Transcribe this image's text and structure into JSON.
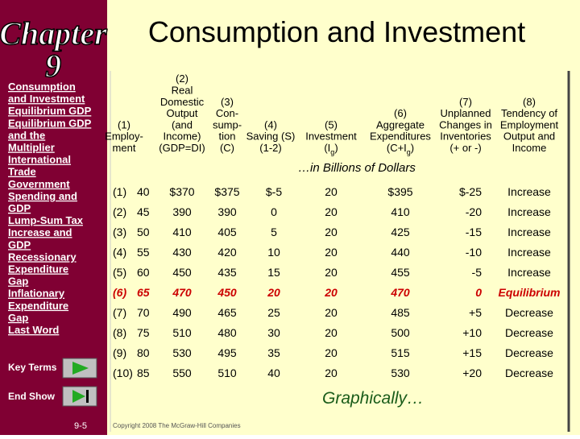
{
  "sidebar": {
    "chapter_word": "Chapter",
    "chapter_number": "9",
    "nav": [
      "Consumption",
      "and Investment",
      "Equilibrium GDP",
      "Equilibrium GDP",
      "and the",
      "Multiplier",
      "International",
      "Trade",
      "Government",
      "Spending and",
      "GDP",
      "Lump-Sum Tax",
      "Increase and",
      "GDP",
      "Recessionary",
      "Expenditure",
      "Gap",
      "Inflationary",
      "Expenditure",
      "Gap",
      "Last Word"
    ],
    "key_terms": "Key Terms",
    "end_show": "End Show",
    "page": "9-5"
  },
  "title": "Consumption and Investment",
  "table": {
    "headers": [
      [
        "(1)",
        "Employ-",
        "ment"
      ],
      [
        "(2)",
        "Real",
        "Domestic",
        "Output",
        "(and",
        "Income)",
        "(GDP=DI)"
      ],
      [
        "(3)",
        "Con-",
        "sump-",
        "tion",
        "(C)"
      ],
      [
        "(4)",
        "Saving (S)",
        "(1-2)"
      ],
      [
        "(5)",
        "Investment",
        {
          "text": "(I",
          "sub": "g",
          "tail": ")"
        }
      ],
      [
        "(6)",
        "Aggregate",
        "Expenditures",
        {
          "text": "(C+I",
          "sub": "g",
          "tail": ")"
        }
      ],
      [
        "(7)",
        "Unplanned",
        "Changes in",
        "Inventories",
        "(+ or -)"
      ],
      [
        "(8)",
        "Tendency of",
        "Employment",
        "Output and",
        "Income"
      ]
    ],
    "units": "…in Billions of Dollars",
    "rows": [
      [
        "(1)",
        40,
        "$370",
        "$375",
        "$-5",
        20,
        "$395",
        "$-25",
        "Increase"
      ],
      [
        "(2)",
        45,
        390,
        390,
        0,
        20,
        410,
        -20,
        "Increase"
      ],
      [
        "(3)",
        50,
        410,
        405,
        5,
        20,
        425,
        -15,
        "Increase"
      ],
      [
        "(4)",
        55,
        430,
        420,
        10,
        20,
        440,
        -10,
        "Increase"
      ],
      [
        "(5)",
        60,
        450,
        435,
        15,
        20,
        455,
        -5,
        "Increase"
      ],
      [
        "(6)",
        65,
        470,
        450,
        20,
        20,
        470,
        0,
        "Equilibrium"
      ],
      [
        "(7)",
        70,
        490,
        465,
        25,
        20,
        485,
        "+5",
        "Decrease"
      ],
      [
        "(8)",
        75,
        510,
        480,
        30,
        20,
        500,
        "+10",
        "Decrease"
      ],
      [
        "(9)",
        80,
        530,
        495,
        35,
        20,
        515,
        "+15",
        "Decrease"
      ],
      [
        "(10)",
        85,
        550,
        510,
        40,
        20,
        530,
        "+20",
        "Decrease"
      ]
    ]
  },
  "link": "Graphically…",
  "copyright": "Copyright 2008 The McGraw-Hill Companies"
}
